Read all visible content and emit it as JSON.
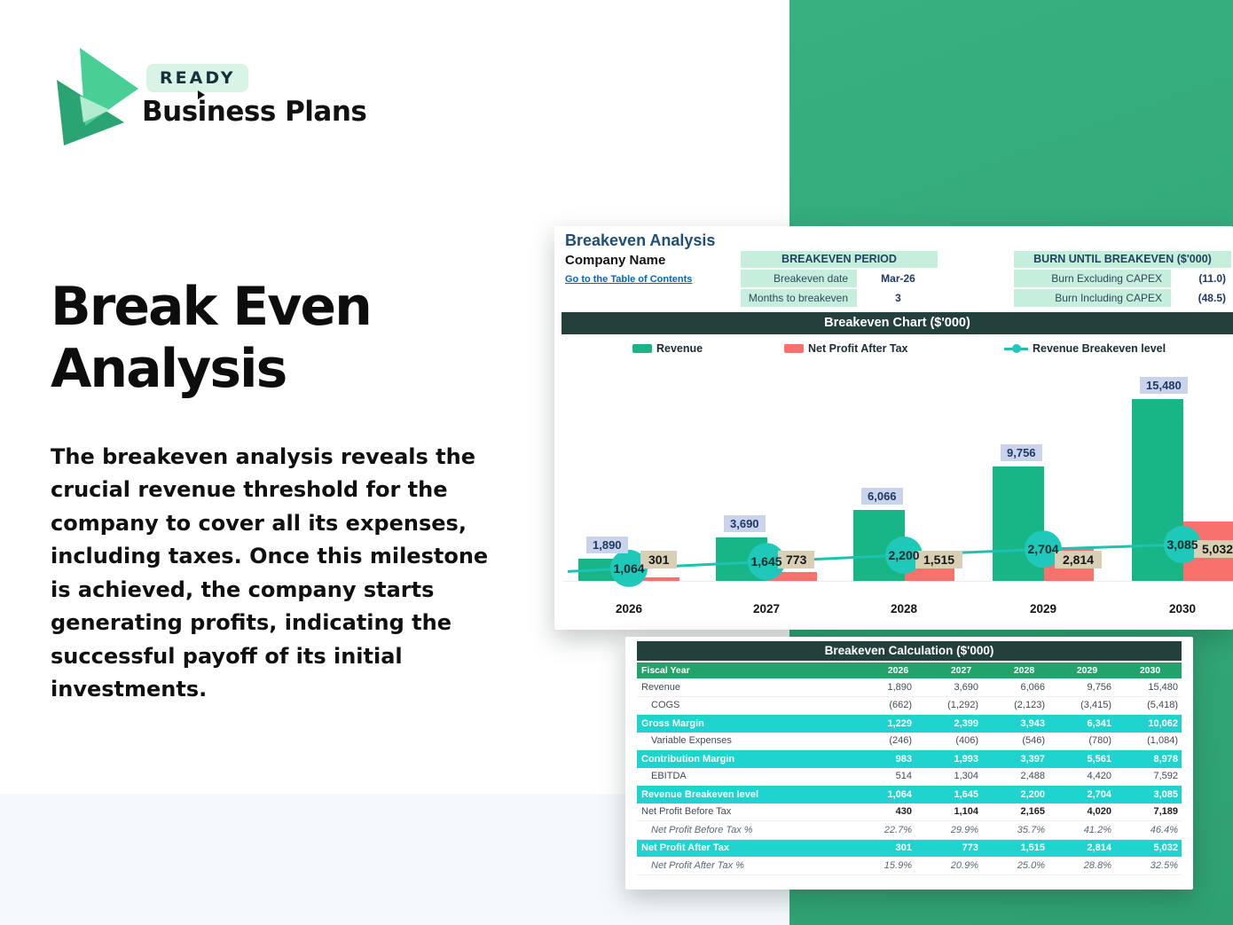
{
  "logo": {
    "badge": "READY",
    "brand": "Business Plans"
  },
  "hero": {
    "title_line1": "Break Even",
    "title_line2": "Analysis",
    "paragraph": "The breakeven analysis reveals the crucial revenue threshold for the company to cover all its expenses, including taxes. Once this milestone is achieved, the company starts generating profits, indicating the successful payoff of its initial investments."
  },
  "sheet": {
    "title": "Breakeven Analysis",
    "company": "Company Name",
    "link": "Go to the Table of Contents",
    "period_table": {
      "header": "BREAKEVEN PERIOD",
      "rows": [
        {
          "label": "Breakeven date",
          "value": "Mar-26"
        },
        {
          "label": "Months to breakeven",
          "value": "3"
        }
      ]
    },
    "burn_table": {
      "header": "BURN UNTIL BREAKEVEN ($'000)",
      "rows": [
        {
          "label": "Burn Excluding CAPEX",
          "value": "(11.0)"
        },
        {
          "label": "Burn Including CAPEX",
          "value": "(48.5)"
        }
      ]
    }
  },
  "chart_data": {
    "type": "bar",
    "title": "Breakeven Chart ($'000)",
    "categories": [
      "2026",
      "2027",
      "2028",
      "2029",
      "2030"
    ],
    "ylim": [
      0,
      15480
    ],
    "legend_position": "top",
    "grid": false,
    "series": [
      {
        "name": "Revenue",
        "kind": "bar",
        "color": "#18b586",
        "values": [
          1890,
          3690,
          6066,
          9756,
          15480
        ],
        "labels": [
          "1,890",
          "3,690",
          "6,066",
          "9,756",
          "15,480"
        ]
      },
      {
        "name": "Net Profit After Tax",
        "kind": "bar",
        "color": "#f8716d",
        "values": [
          301,
          773,
          1515,
          2814,
          5032
        ],
        "labels": [
          "301",
          "773",
          "1,515",
          "2,814",
          "5,032"
        ]
      },
      {
        "name": "Revenue Breakeven level",
        "kind": "line",
        "color": "#1cc2b2",
        "marker_color": "#1fc9b9",
        "values": [
          1064,
          1645,
          2200,
          2704,
          3085
        ],
        "labels": [
          "1,064",
          "1,645",
          "2,200",
          "2,704",
          "3,085"
        ]
      }
    ]
  },
  "calc_table": {
    "title": "Breakeven Calculation ($'000)",
    "header": {
      "label": "Fiscal Year",
      "years": [
        "2026",
        "2027",
        "2028",
        "2029",
        "2030"
      ]
    },
    "rows": [
      {
        "label": "Revenue",
        "style": "normal",
        "indent": false,
        "values": [
          "1,890",
          "3,690",
          "6,066",
          "9,756",
          "15,480"
        ]
      },
      {
        "label": "COGS",
        "style": "normal",
        "indent": true,
        "values": [
          "(662)",
          "(1,292)",
          "(2,123)",
          "(3,415)",
          "(5,418)"
        ]
      },
      {
        "label": "Gross Margin",
        "style": "cyan",
        "indent": false,
        "values": [
          "1,229",
          "2,399",
          "3,943",
          "6,341",
          "10,062"
        ]
      },
      {
        "label": "Variable Expenses",
        "style": "normal",
        "indent": true,
        "values": [
          "(246)",
          "(406)",
          "(546)",
          "(780)",
          "(1,084)"
        ]
      },
      {
        "label": "Contribution Margin",
        "style": "cyan",
        "indent": false,
        "values": [
          "983",
          "1,993",
          "3,397",
          "5,561",
          "8,978"
        ]
      },
      {
        "label": "EBITDA",
        "style": "normal",
        "indent": true,
        "values": [
          "514",
          "1,304",
          "2,488",
          "4,420",
          "7,592"
        ]
      },
      {
        "label": "Revenue Breakeven level",
        "style": "cyan",
        "indent": false,
        "values": [
          "1,064",
          "1,645",
          "2,200",
          "2,704",
          "3,085"
        ]
      },
      {
        "label": "Net Profit Before Tax",
        "style": "bold",
        "indent": false,
        "values": [
          "430",
          "1,104",
          "2,165",
          "4,020",
          "7,189"
        ]
      },
      {
        "label": "Net Profit Before Tax %",
        "style": "pct",
        "indent": true,
        "values": [
          "22.7%",
          "29.9%",
          "35.7%",
          "41.2%",
          "46.4%"
        ]
      },
      {
        "label": "Net Profit After Tax",
        "style": "cyan",
        "indent": false,
        "values": [
          "301",
          "773",
          "1,515",
          "2,814",
          "5,032"
        ]
      },
      {
        "label": "Net Profit After Tax %",
        "style": "pct",
        "indent": true,
        "values": [
          "15.9%",
          "20.9%",
          "25.0%",
          "28.8%",
          "32.5%"
        ]
      }
    ]
  },
  "colors": {
    "accent_green_block": "#35a97a",
    "bar_revenue": "#18b586",
    "bar_npat": "#f8716d",
    "breakeven_line": "#1cc2b2",
    "dark_header": "#24403c",
    "mint_cell": "#c5eedd",
    "fiscal_row_green": "#23a36c",
    "cyan_row": "#1fd3cf",
    "revenue_label_bg": "#c9d3ec",
    "npat_label_bg": "#d8cfb5",
    "link_blue": "#0563c1",
    "sheet_title_navy": "#1f4e79"
  }
}
